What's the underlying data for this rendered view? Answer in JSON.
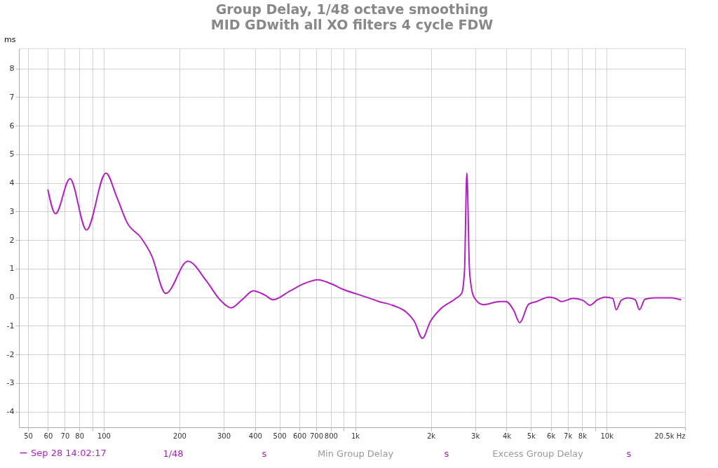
{
  "chart_data": {
    "type": "line",
    "title": "Group Delay, 1/48 octave smoothing",
    "subtitle": "MID GDwith all XO filters 4 cycle FDW",
    "ylabel": "ms",
    "x": [
      60,
      64.3,
      73.4,
      85.4,
      102,
      112.7,
      124,
      141,
      155,
      176.5,
      216,
      256,
      290,
      321,
      357,
      393,
      438,
      472,
      546,
      620,
      711,
      797,
      903,
      1000,
      1128,
      1240,
      1405,
      1595,
      1720,
      1850,
      1990,
      2185,
      2490,
      2650,
      2720,
      2780,
      2850,
      2960,
      3220,
      3780,
      3975,
      4270,
      4510,
      4900,
      5270,
      5900,
      6250,
      6630,
      7370,
      8050,
      8580,
      9200,
      9870,
      10580,
      10920,
      11430,
      12190,
      12990,
      13500,
      14200,
      15520,
      18100,
      19700
    ],
    "series": [
      {
        "name": "Sep 28 14:02:17",
        "color": "#b121c0",
        "values": [
          3.75,
          2.92,
          4.14,
          2.35,
          4.34,
          3.5,
          2.6,
          2.07,
          1.46,
          0.13,
          1.26,
          0.57,
          -0.09,
          -0.37,
          -0.07,
          0.22,
          0.07,
          -0.09,
          0.2,
          0.46,
          0.61,
          0.48,
          0.26,
          0.13,
          -0.02,
          -0.15,
          -0.28,
          -0.52,
          -0.85,
          -1.44,
          -0.85,
          -0.41,
          -0.07,
          0.13,
          0.9,
          4.35,
          0.9,
          0.02,
          -0.26,
          -0.15,
          -0.15,
          -0.46,
          -0.89,
          -0.24,
          -0.15,
          0.0,
          -0.04,
          -0.15,
          -0.04,
          -0.11,
          -0.28,
          -0.09,
          0.0,
          -0.04,
          -0.44,
          -0.11,
          -0.02,
          -0.09,
          -0.44,
          -0.07,
          -0.02,
          -0.02,
          -0.09
        ]
      }
    ],
    "log": "x",
    "xlim": [
      46,
      20500
    ],
    "ylim": [
      -4.55,
      8.7
    ],
    "xticks": [
      50,
      60,
      70,
      80,
      {
        "value": 90,
        "label": null
      },
      100,
      200,
      300,
      400,
      500,
      600,
      700,
      800,
      {
        "value": 900,
        "label": null
      },
      {
        "value": 1000,
        "label": "1k"
      },
      {
        "value": 2000,
        "label": "2k"
      },
      {
        "value": 3000,
        "label": "3k"
      },
      {
        "value": 4000,
        "label": "4k"
      },
      {
        "value": 5000,
        "label": "5k"
      },
      {
        "value": 6000,
        "label": "6k"
      },
      {
        "value": 7000,
        "label": "7k"
      },
      {
        "value": 8000,
        "label": "8k"
      },
      {
        "value": 9000,
        "label": null
      },
      {
        "value": 10000,
        "label": "10k"
      },
      {
        "value": 20500,
        "label": "20.5k Hz"
      }
    ],
    "yticks": [
      -4,
      -3,
      -2,
      -1,
      0,
      1,
      2,
      3,
      4,
      5,
      6,
      7,
      8
    ],
    "grid": true,
    "legend": "bottom",
    "marker": "none",
    "line_style": "solid",
    "annotations": [
      "1/48",
      "s",
      "Min Group Delay",
      "s",
      "Excess Group Delay",
      "s"
    ]
  }
}
